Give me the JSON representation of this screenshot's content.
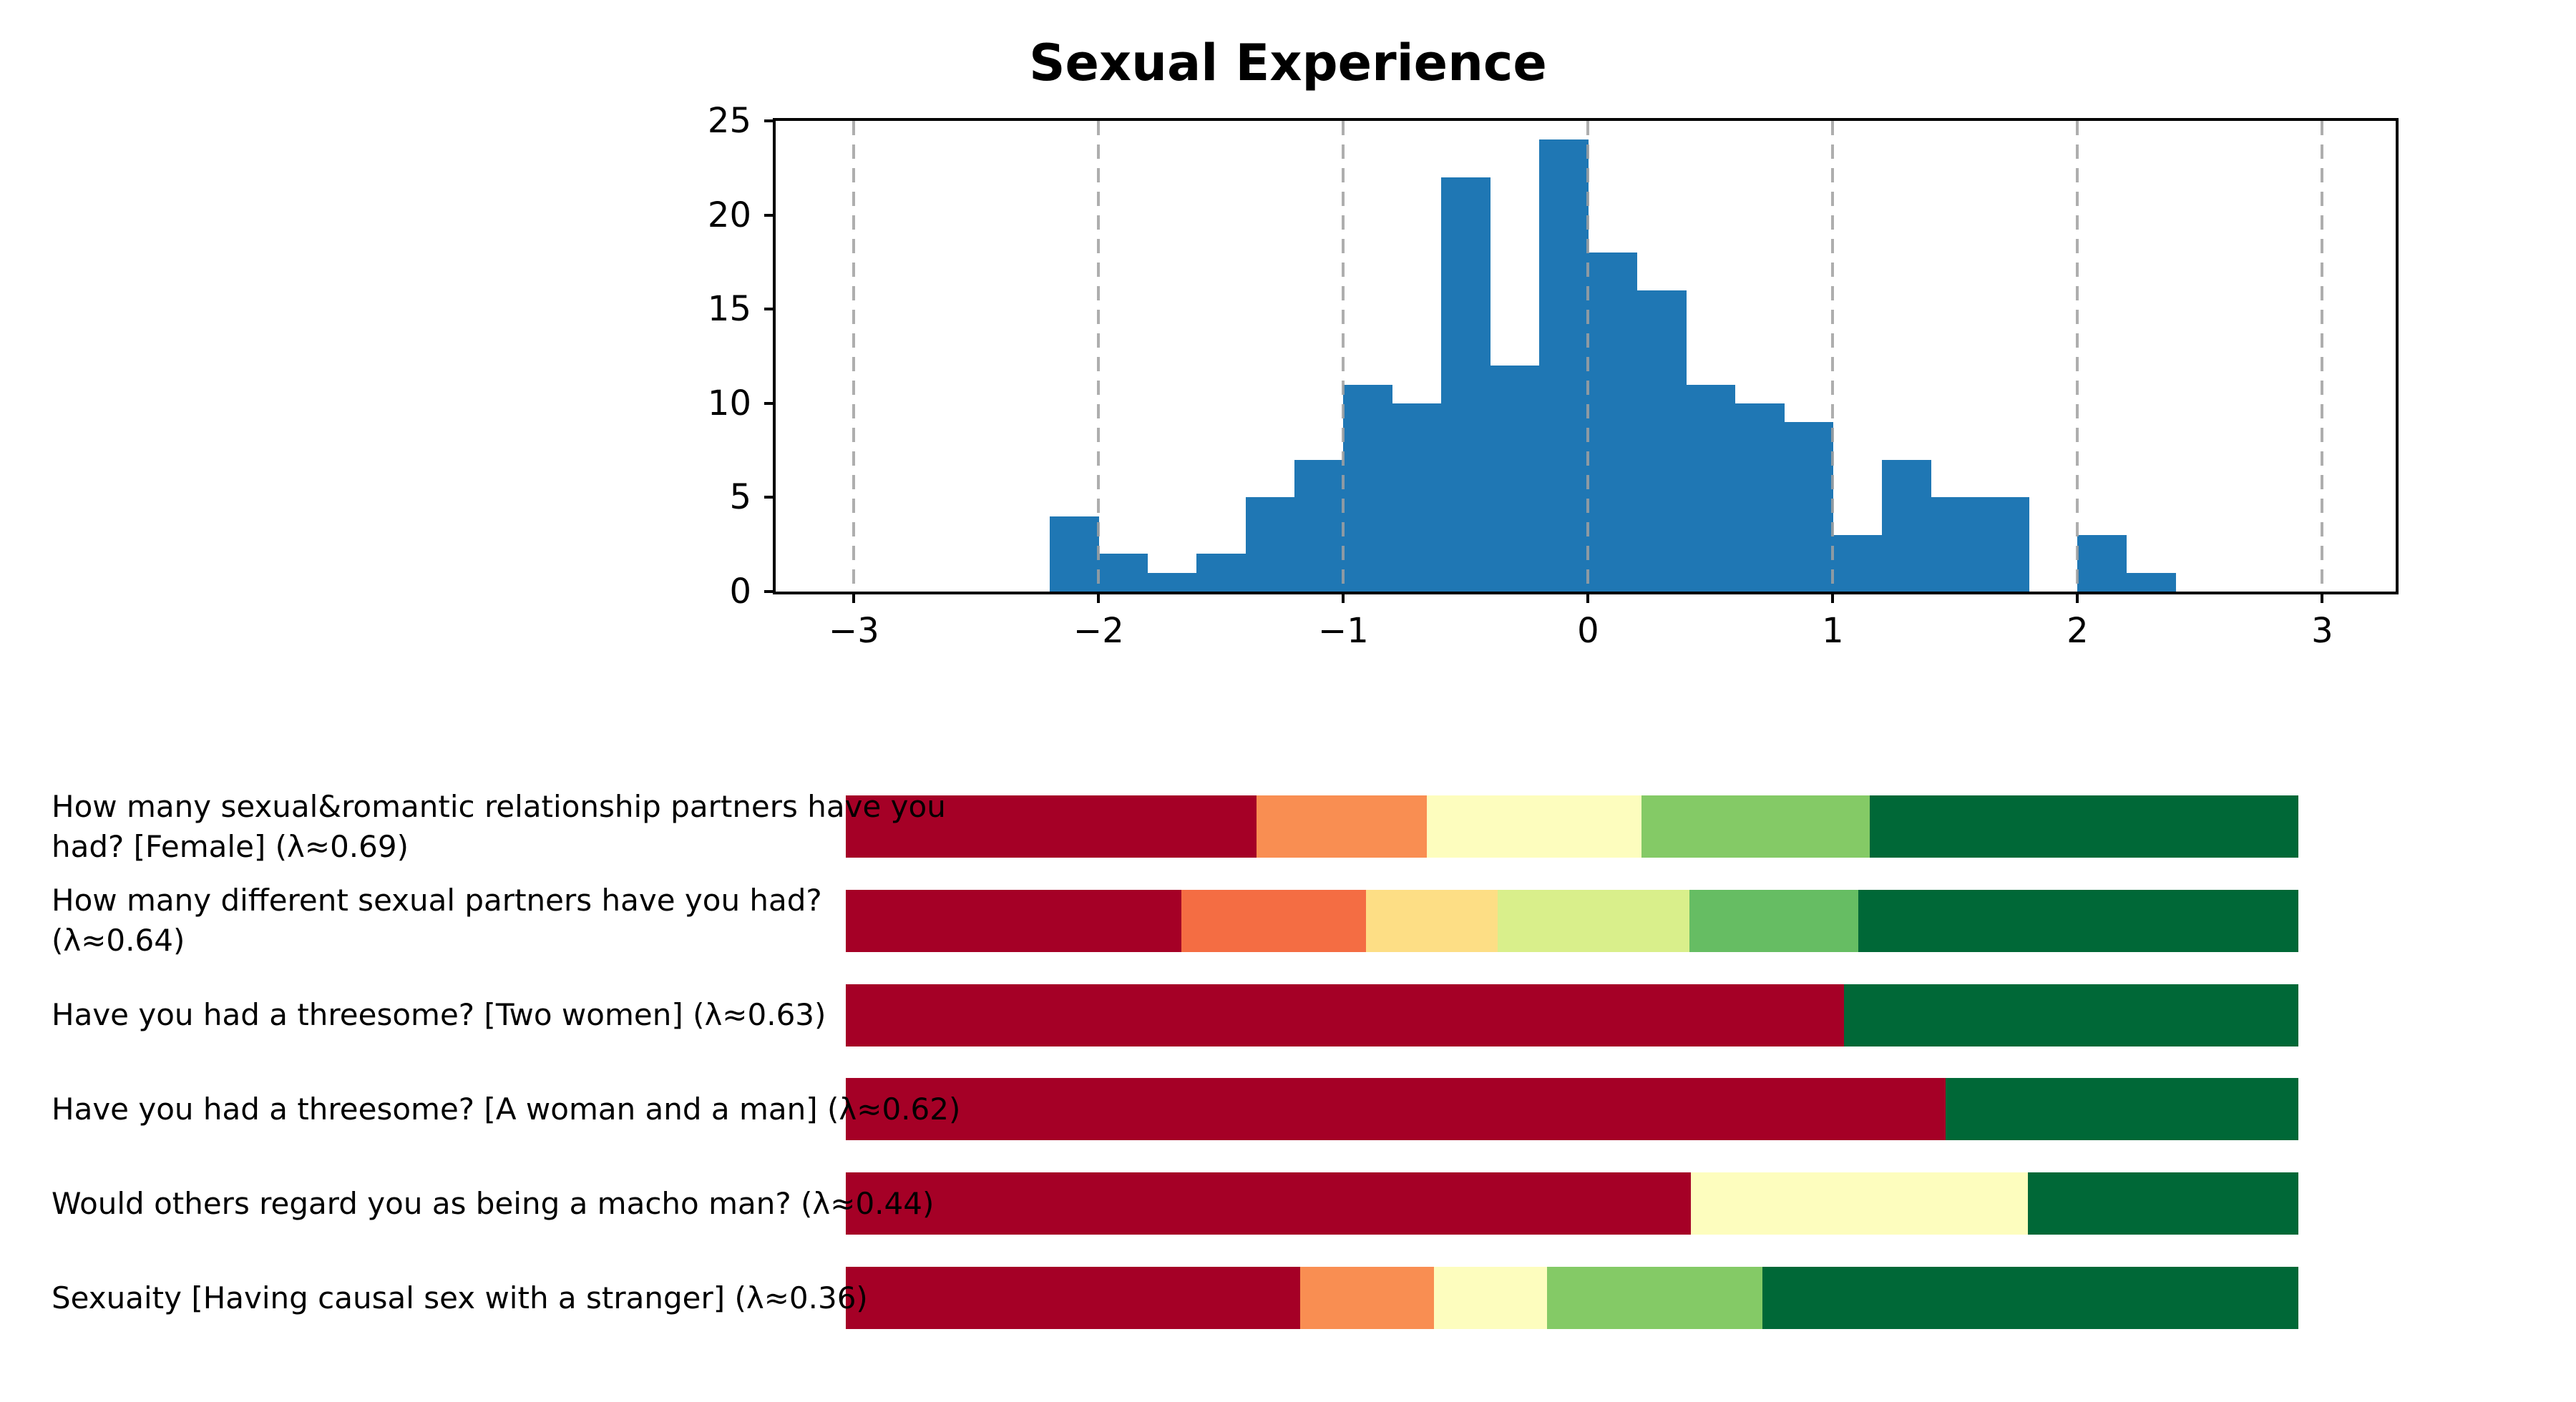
{
  "chart_data": [
    {
      "type": "bar",
      "subtype": "histogram",
      "title": "Sexual Experience",
      "bar_color": "#1f77b4",
      "bin_start": -2.2,
      "bin_width": 0.2,
      "counts": [
        4,
        2,
        1,
        2,
        5,
        7,
        11,
        10,
        22,
        12,
        24,
        18,
        16,
        11,
        10,
        9,
        3,
        7,
        5,
        5,
        0,
        3,
        1
      ],
      "xlim": [
        -3.32,
        3.3
      ],
      "ylim": [
        0,
        25
      ],
      "xticks": [
        -3,
        -2,
        -1,
        0,
        1,
        2,
        3
      ],
      "xtick_labels": [
        "−3",
        "−2",
        "−1",
        "0",
        "1",
        "2",
        "3"
      ],
      "yticks": [
        0,
        5,
        10,
        15,
        20,
        25
      ],
      "ytick_labels": [
        "0",
        "5",
        "10",
        "15",
        "20",
        "25"
      ],
      "grid": {
        "axis": "x",
        "style": "dashed",
        "color": "#b0b0b0",
        "on": true,
        "above_bars": true
      },
      "legend": "none"
    },
    {
      "type": "bar",
      "subtype": "horizontal_stacked_fraction",
      "rows": [
        {
          "label": "How many sexual&romantic relationship partners have you\nhad? [Female] (λ≈0.69)",
          "segments": [
            {
              "color": "#a50026",
              "fraction": 0.283
            },
            {
              "color": "#f98e52",
              "fraction": 0.117
            },
            {
              "color": "#fdfdbe",
              "fraction": 0.148
            },
            {
              "color": "#84ca66",
              "fraction": 0.157
            },
            {
              "color": "#006837",
              "fraction": 0.295
            }
          ]
        },
        {
          "label": "How many different sexual partners have you had?\n(λ≈0.64)",
          "segments": [
            {
              "color": "#a50026",
              "fraction": 0.231
            },
            {
              "color": "#f46d43",
              "fraction": 0.127
            },
            {
              "color": "#fdde85",
              "fraction": 0.091
            },
            {
              "color": "#d9ef8b",
              "fraction": 0.132
            },
            {
              "color": "#66bd63",
              "fraction": 0.116
            },
            {
              "color": "#006837",
              "fraction": 0.303
            }
          ]
        },
        {
          "label": "Have you had a threesome? [Two women] (λ≈0.63)",
          "segments": [
            {
              "color": "#a50026",
              "fraction": 0.687
            },
            {
              "color": "#006837",
              "fraction": 0.313
            }
          ]
        },
        {
          "label": "Have you had a threesome? [A woman and a man] (λ≈0.62)",
          "segments": [
            {
              "color": "#a50026",
              "fraction": 0.757
            },
            {
              "color": "#006837",
              "fraction": 0.243
            }
          ]
        },
        {
          "label": "Would others regard you as being a macho man? (λ≈0.44)",
          "segments": [
            {
              "color": "#a50026",
              "fraction": 0.582
            },
            {
              "color": "#fdfdbe",
              "fraction": 0.232
            },
            {
              "color": "#006837",
              "fraction": 0.186
            }
          ]
        },
        {
          "label": "Sexuaity [Having causal sex with a stranger] (λ≈0.36)",
          "segments": [
            {
              "color": "#a50026",
              "fraction": 0.313
            },
            {
              "color": "#f98e52",
              "fraction": 0.092
            },
            {
              "color": "#fdfdbe",
              "fraction": 0.078
            },
            {
              "color": "#84ca66",
              "fraction": 0.148
            },
            {
              "color": "#006837",
              "fraction": 0.369
            }
          ]
        }
      ]
    }
  ]
}
